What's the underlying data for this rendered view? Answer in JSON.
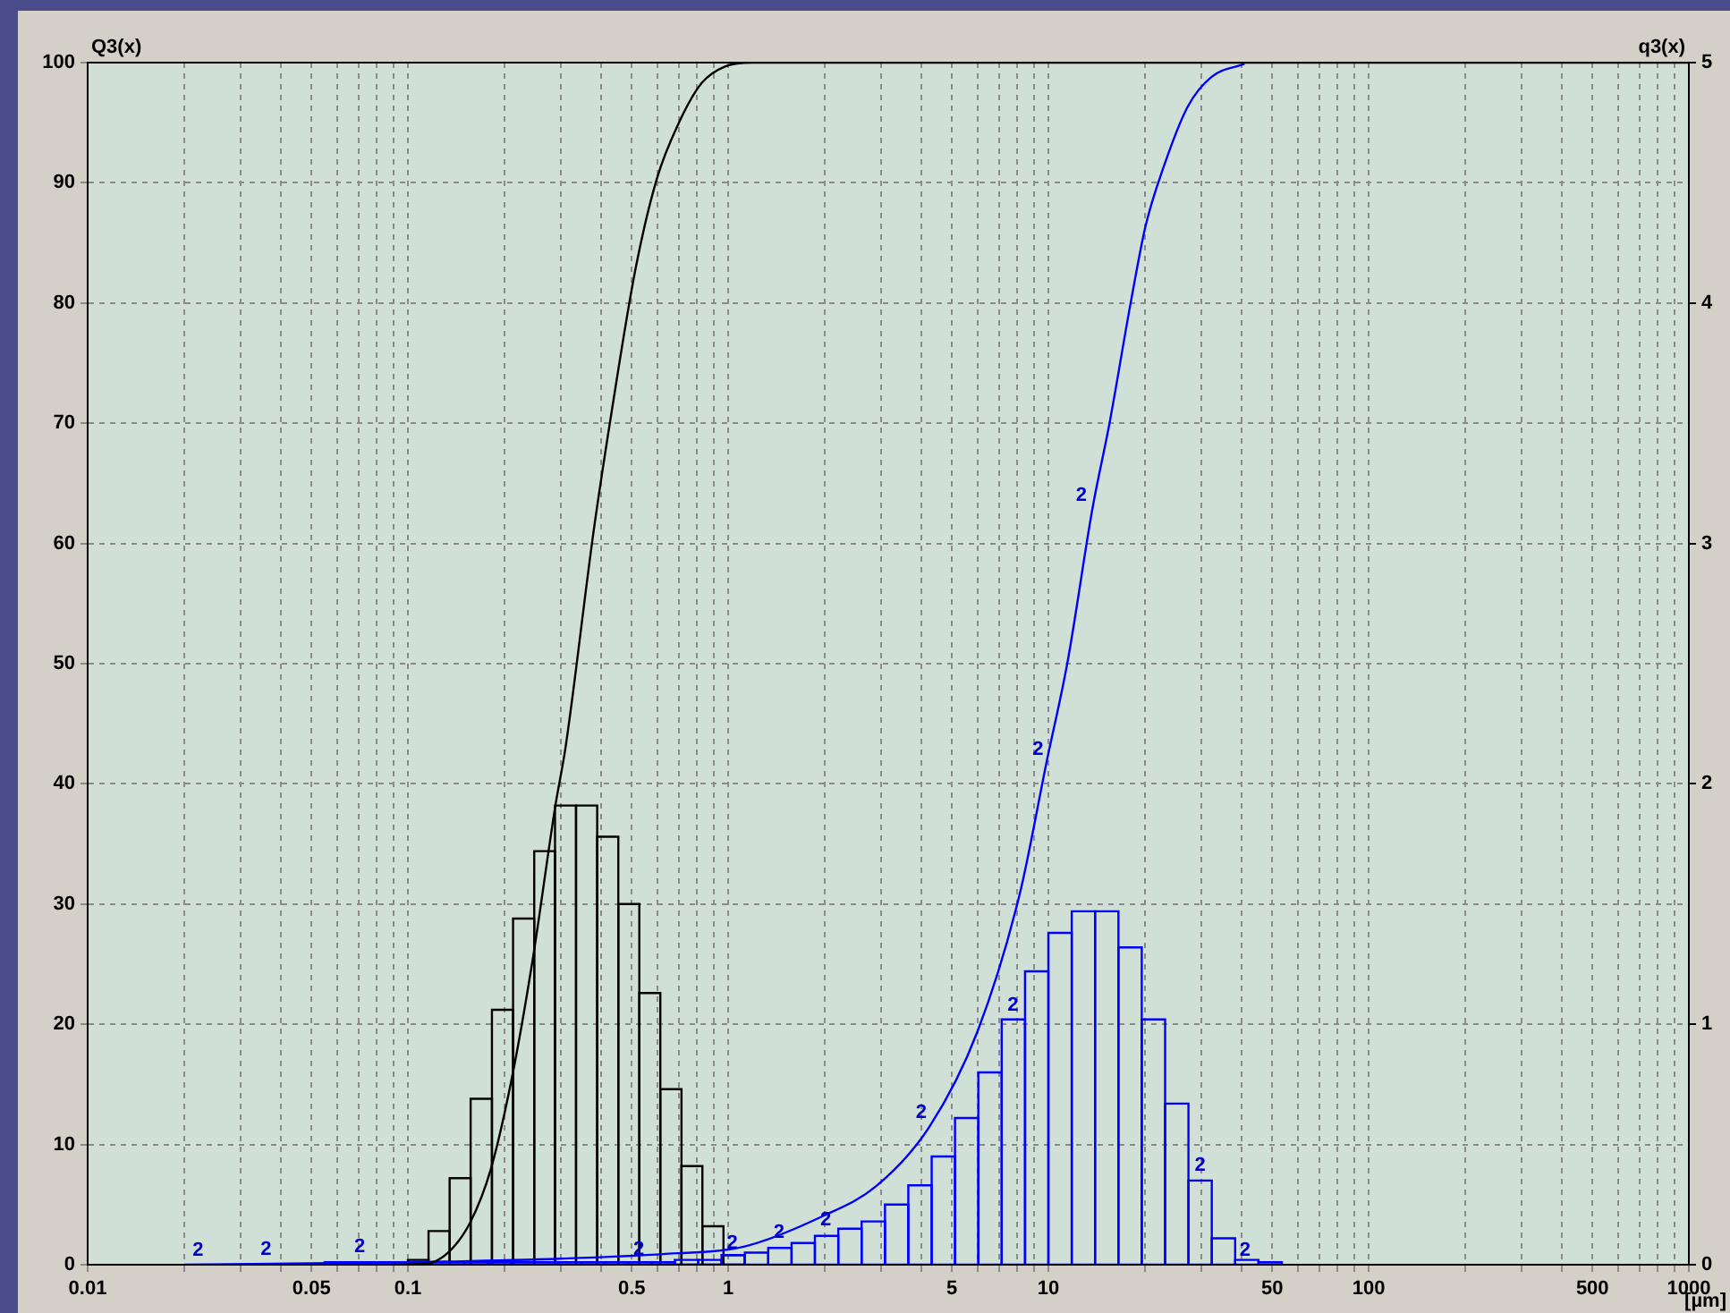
{
  "chart_data": {
    "type": "histogram",
    "xlabel": "[µm]",
    "ylabel": "Q3(x)",
    "y2label": "q3(x)",
    "log": "x",
    "grid": true,
    "xlim": [
      0.01,
      1000
    ],
    "xticks": [
      0.01,
      {
        "value": 0.02,
        "label": null
      },
      {
        "value": 0.03,
        "label": null
      },
      {
        "value": 0.04,
        "label": null
      },
      0.05,
      {
        "value": 0.06,
        "label": null
      },
      {
        "value": 0.07,
        "label": null
      },
      {
        "value": 0.08,
        "label": null
      },
      {
        "value": 0.09,
        "label": null
      },
      0.1,
      {
        "value": 0.2,
        "label": null
      },
      {
        "value": 0.3,
        "label": null
      },
      {
        "value": 0.4,
        "label": null
      },
      0.5,
      {
        "value": 0.6,
        "label": null
      },
      {
        "value": 0.7,
        "label": null
      },
      {
        "value": 0.8,
        "label": null
      },
      {
        "value": 0.9,
        "label": null
      },
      1,
      {
        "value": 2,
        "label": null
      },
      {
        "value": 3,
        "label": null
      },
      {
        "value": 4,
        "label": null
      },
      5,
      {
        "value": 6,
        "label": null
      },
      {
        "value": 7,
        "label": null
      },
      {
        "value": 8,
        "label": null
      },
      {
        "value": 9,
        "label": null
      },
      10,
      {
        "value": 20,
        "label": null
      },
      {
        "value": 30,
        "label": null
      },
      {
        "value": 40,
        "label": null
      },
      50,
      {
        "value": 60,
        "label": null
      },
      {
        "value": 70,
        "label": null
      },
      {
        "value": 80,
        "label": null
      },
      {
        "value": 90,
        "label": null
      },
      100,
      {
        "value": 200,
        "label": null
      },
      {
        "value": 300,
        "label": null
      },
      {
        "value": 400,
        "label": null
      },
      500,
      {
        "value": 600,
        "label": null
      },
      {
        "value": 700,
        "label": null
      },
      {
        "value": 800,
        "label": null
      },
      {
        "value": 900,
        "label": null
      },
      1000
    ],
    "ylim": [
      0,
      100
    ],
    "yticks": [
      0,
      10,
      20,
      30,
      40,
      50,
      60,
      70,
      80,
      90,
      100
    ],
    "y2lim": [
      0,
      5
    ],
    "y2ticks": [
      0,
      1,
      2,
      3,
      4,
      5
    ],
    "series": [
      {
        "type": "histogram",
        "axis": "y2",
        "color": "#000000",
        "bins": [
          0.1,
          0.116,
          0.135,
          0.157,
          0.183,
          0.213,
          0.248,
          0.288,
          0.335,
          0.39,
          0.454,
          0.528,
          0.614,
          0.715,
          0.831,
          0.967,
          1.125
        ],
        "values": [
          0.02,
          0.14,
          0.36,
          0.69,
          1.06,
          1.44,
          1.72,
          1.91,
          1.91,
          1.78,
          1.5,
          1.13,
          0.73,
          0.41,
          0.16,
          0.04
        ]
      },
      {
        "type": "histogram",
        "axis": "y2",
        "color": "#0000ff",
        "bins": [
          0.0332,
          0.0393,
          0.0465,
          0.055,
          0.065,
          0.0769,
          0.091,
          0.1076,
          0.1272,
          0.1505,
          0.178,
          0.2105,
          0.249,
          0.2945,
          0.3483,
          0.412,
          0.4873,
          0.5763,
          0.6817,
          0.8063,
          0.9537,
          1.128,
          1.334,
          1.578,
          1.866,
          2.208,
          2.611,
          3.089,
          3.653,
          4.321,
          5.11,
          6.044,
          7.149,
          8.455,
          10,
          11.83,
          13.99,
          16.55,
          19.57,
          23.15,
          27.38,
          32.38,
          38.3,
          45.3,
          53.58
        ],
        "values": [
          0,
          0,
          0,
          0.01,
          0.01,
          0.01,
          0.01,
          0.01,
          0.01,
          0.01,
          0.01,
          0.01,
          0.01,
          0.01,
          0.01,
          0.01,
          0.01,
          0.01,
          0.02,
          0.02,
          0.04,
          0.05,
          0.07,
          0.09,
          0.12,
          0.15,
          0.18,
          0.25,
          0.33,
          0.45,
          0.61,
          0.8,
          1.02,
          1.22,
          1.38,
          1.47,
          1.47,
          1.32,
          1.02,
          0.67,
          0.35,
          0.11,
          0.02,
          0.01
        ]
      },
      {
        "type": "line",
        "color": "#000000",
        "x": [
          0.09,
          0.1147,
          0.1334,
          0.1564,
          0.1813,
          0.2107,
          0.245,
          0.2888,
          0.3105,
          0.3805,
          0.433,
          0.5143,
          0.5984,
          0.6963,
          0.8268,
          0.982,
          1.192,
          1000
        ],
        "values": [
          0,
          0.1,
          1,
          3.5,
          7.9,
          15.4,
          25.3,
          38.2,
          43,
          61.1,
          71,
          82.9,
          90.3,
          94.8,
          98.3,
          99.7,
          100,
          100
        ]
      },
      {
        "type": "line",
        "color": "#0000ff",
        "x": [
          0.02,
          0.1,
          0.3,
          0.638,
          1.118,
          1.96,
          2.888,
          4.258,
          6.007,
          8.132,
          9.87,
          11.47,
          13.75,
          15.52,
          18.04,
          20.11,
          22.89,
          27.19,
          32.28,
          40.96
        ],
        "values": [
          0,
          0.2,
          0.5,
          0.9,
          1.5,
          4,
          6.5,
          11.5,
          19.4,
          30.8,
          41.8,
          50.1,
          63,
          70,
          79.9,
          86.4,
          91.3,
          96.3,
          98.8,
          99.9
        ]
      }
    ],
    "annotations": [
      {
        "text": "2",
        "x": 0.0236,
        "y": 0
      },
      {
        "text": "2",
        "x": 0.0385,
        "y": 0.1
      },
      {
        "text": "2",
        "x": 0.0755,
        "y": 0.3
      },
      {
        "text": "2",
        "x": 0.561,
        "y": 0.1
      },
      {
        "text": "2",
        "x": 1.099,
        "y": 0.6
      },
      {
        "text": "2",
        "x": 1.538,
        "y": 1.5
      },
      {
        "text": "2",
        "x": 2.154,
        "y": 2.5
      },
      {
        "text": "2",
        "x": 4.275,
        "y": 11.5
      },
      {
        "text": "2",
        "x": 8.27,
        "y": 20.4
      },
      {
        "text": "2",
        "x": 9.91,
        "y": 41.7
      },
      {
        "text": "2",
        "x": 13.52,
        "y": 62.8
      },
      {
        "text": "2",
        "x": 31.8,
        "y": 7.1
      },
      {
        "text": "2",
        "x": 43.9,
        "y": 0
      }
    ]
  }
}
